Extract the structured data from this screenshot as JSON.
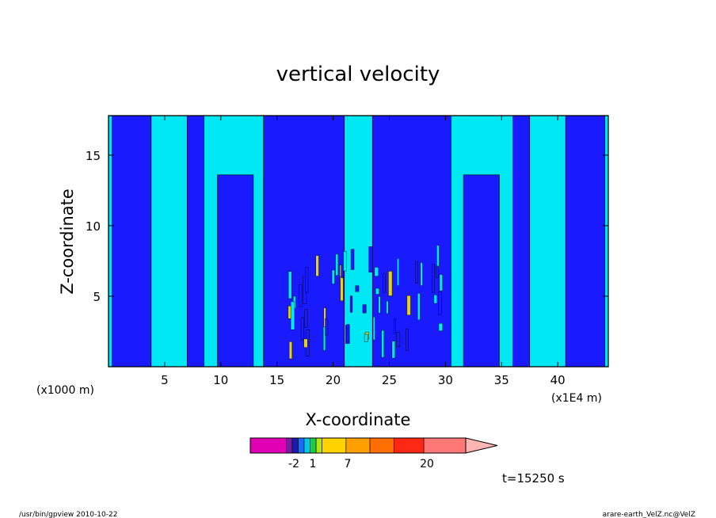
{
  "chart_data": {
    "type": "heatmap",
    "title": "vertical velocity",
    "xlabel": "X-coordinate",
    "ylabel": "Z-coordinate",
    "x_unit_left": "(x1000 m)",
    "x_unit_right": "(x1E4 m)",
    "xlim": [
      0,
      44.5
    ],
    "ylim": [
      0,
      17.8
    ],
    "x_ticks": [
      5,
      10,
      15,
      20,
      25,
      30,
      35,
      40
    ],
    "y_ticks": [
      5,
      10,
      15
    ],
    "x_tick_labels": [
      "5",
      "10",
      "15",
      "20",
      "25",
      "30",
      "35",
      "40"
    ],
    "y_tick_labels": [
      "5",
      "10",
      "15"
    ],
    "field_colors": {
      "negative": "#1a1aff",
      "positive": "#00e8f4",
      "strong_positive": "#e6d21e"
    },
    "downdraft_bands": [
      {
        "x0": 0.3,
        "x1": 3.8,
        "z_top": 17.8
      },
      {
        "x0": 7.0,
        "x1": 8.5,
        "z_top": 17.8
      },
      {
        "x0": 9.7,
        "x1": 12.9,
        "z_top": 13.6
      },
      {
        "x0": 13.8,
        "x1": 21.0,
        "z_top": 17.8
      },
      {
        "x0": 23.5,
        "x1": 30.5,
        "z_top": 17.8
      },
      {
        "x0": 31.6,
        "x1": 34.8,
        "z_top": 13.6
      },
      {
        "x0": 36.0,
        "x1": 37.5,
        "z_top": 17.8
      },
      {
        "x0": 40.7,
        "x1": 44.2,
        "z_top": 17.8
      }
    ],
    "colorbar": {
      "colors": [
        "#e100b4",
        "#7a1aa8",
        "#1a1ab4",
        "#1a6cff",
        "#00c8e6",
        "#23c84a",
        "#b4e614",
        "#ffd200",
        "#ffa000",
        "#ff6e00",
        "#ff2814",
        "#ff7878",
        "#ffb4b4"
      ],
      "widths": [
        6,
        1,
        1,
        1,
        1,
        1,
        1,
        4,
        4,
        4,
        5,
        7,
        5
      ],
      "tick_labels": [
        "-2",
        "1",
        "7",
        "20"
      ]
    },
    "time_label": "t=15250 s"
  },
  "footer": {
    "left": "/usr/bin/gpview   2010-10-22",
    "right": "arare-earth_VelZ.nc@VelZ"
  }
}
